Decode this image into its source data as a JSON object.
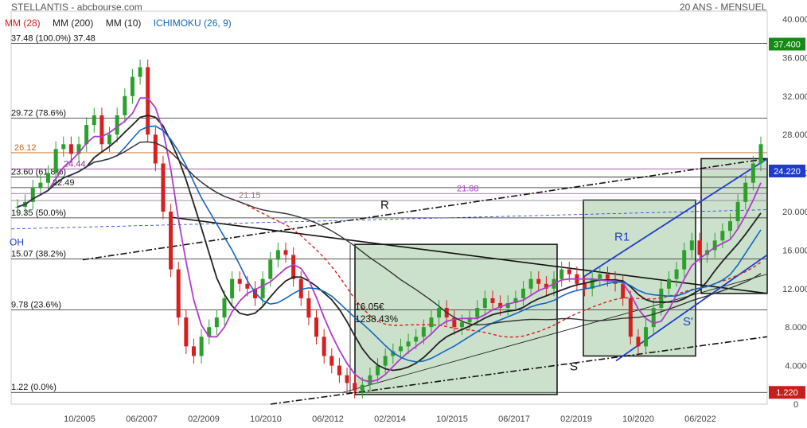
{
  "header": {
    "title": "STELLANTIS - abcbourse.com",
    "period": "20 ANS - MENSUEL"
  },
  "legend": {
    "mm28": "MM (28)",
    "mm200": "MM (200)",
    "mm10": "MM (10)",
    "ichimoku": "ICHIMOKU (26, 9)"
  },
  "colors": {
    "mm28": "#d62020",
    "mm200": "#222222",
    "mm10": "#222222",
    "ichimoku": "#1565c0",
    "candle_up": "#2ca02c",
    "candle_down": "#d62020",
    "purple": "#b03cc8",
    "last_price_bg": "#138a13",
    "low_price_bg": "#c81e1e",
    "box_fill": "#8fbc8f"
  },
  "chart_data": {
    "type": "candlestick",
    "ylim": [
      0,
      40
    ],
    "y_ticks": [
      "0",
      "4.000",
      "8.000",
      "12.000",
      "16.000",
      "20.000",
      "24.000",
      "28.000",
      "32.000",
      "36.000",
      "40.000"
    ],
    "x_ticks": [
      "10/2005",
      "06/2007",
      "02/2009",
      "10/2010",
      "06/2012",
      "02/2014",
      "10/2015",
      "06/2017",
      "02/2019",
      "10/2020",
      "06/2022"
    ],
    "fibonacci": [
      {
        "label": "37.48  (100.0%) 37.48",
        "value": 37.48
      },
      {
        "label": "29.72  (78.6%)",
        "value": 29.72
      },
      {
        "label": "23.60  (61.8%)",
        "value": 23.6
      },
      {
        "label": "19.35  (50.0%)",
        "value": 19.35
      },
      {
        "label": "15.07  (38.2%)",
        "value": 15.07
      },
      {
        "label": "9.78  (23.6%)",
        "value": 9.78
      },
      {
        "label": "1.22  (0.0%)",
        "value": 1.22
      }
    ],
    "price_levels": [
      {
        "label": "26.12",
        "value": 26.12,
        "color": "#c8641e"
      },
      {
        "label": "24.44",
        "value": 24.44,
        "color": "#8b2c8b"
      },
      {
        "label": "22.49",
        "value": 22.49,
        "color": "#222222"
      },
      {
        "label": "21.88",
        "value": 21.88,
        "color": "#b03cc8"
      },
      {
        "label": "21.15",
        "value": 21.15,
        "color": "#888888"
      }
    ],
    "annotations": [
      {
        "text": "R",
        "x": "06/2012",
        "y": 20.3
      },
      {
        "text": "R1",
        "x": "02/2019",
        "y": 17.0
      },
      {
        "text": "S",
        "x": "06/2017",
        "y": 3.5
      },
      {
        "text": "S'",
        "x": "06/2022",
        "y": 8.2
      },
      {
        "text": "16.05€",
        "x": "06/2012",
        "y": 9.8
      },
      {
        "text": "1238.43%",
        "x": "06/2012",
        "y": 8.5
      },
      {
        "text": "OH",
        "x": "10/2005",
        "y": 16.5
      }
    ],
    "current_price": {
      "label": "37.400",
      "value": 37.4
    },
    "side_level": {
      "label": "24.220",
      "value": 24.22
    },
    "low_price": {
      "label": "1.220",
      "value": 1.22
    },
    "close": [
      20.5,
      21,
      22.5,
      23,
      24,
      26.5,
      27,
      26,
      27,
      29,
      30,
      27,
      28,
      30,
      32,
      34,
      35,
      28,
      25,
      20,
      14,
      9,
      6,
      5,
      7,
      8,
      9,
      11,
      13,
      12.5,
      12,
      11,
      13,
      15,
      16,
      15.5,
      13,
      11,
      9,
      7,
      5,
      4,
      3,
      2.2,
      1.4,
      2,
      3,
      4,
      5,
      5.5,
      6,
      6.5,
      7,
      8,
      9,
      10,
      9,
      8,
      8.5,
      9,
      10,
      11,
      10.5,
      10,
      10.5,
      11,
      12,
      13,
      12.5,
      12,
      13,
      14,
      13.5,
      12.5,
      12,
      13,
      13.5,
      13,
      12.5,
      11,
      7,
      6,
      8,
      10,
      12,
      13,
      14,
      16,
      17,
      15.5,
      16,
      17,
      18,
      19,
      21,
      23,
      25,
      27
    ]
  }
}
